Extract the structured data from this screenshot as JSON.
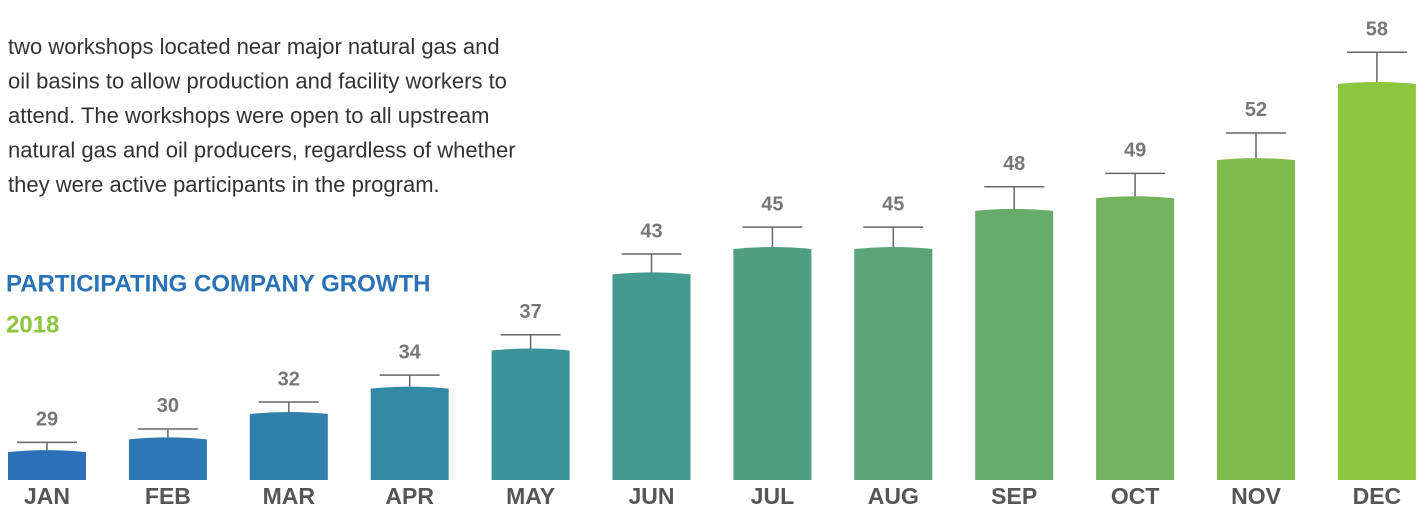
{
  "paragraph": [
    "two workshops located near major natural gas and",
    "oil basins to allow production and facility workers to",
    "attend. The workshops were open to all upstream",
    "natural gas and oil producers, regardless of whether",
    "they were active participants in the program."
  ],
  "chart_data": {
    "type": "bar",
    "title": "PARTICIPATING COMPANY GROWTH",
    "subtitle": "2018",
    "categories": [
      "JAN",
      "FEB",
      "MAR",
      "APR",
      "MAY",
      "JUN",
      "JUL",
      "AUG",
      "SEP",
      "OCT",
      "NOV",
      "DEC"
    ],
    "values": [
      29,
      30,
      32,
      34,
      37,
      43,
      45,
      45,
      48,
      49,
      52,
      58
    ],
    "colors": [
      "#2b70b8",
      "#2b78b2",
      "#2f81ab",
      "#338aa4",
      "#3a929b",
      "#459a8f",
      "#509f83",
      "#5aa577",
      "#68ac6b",
      "#74b35c",
      "#80bb4e",
      "#8cc63f"
    ],
    "ylim": [
      26.8,
      58
    ]
  }
}
